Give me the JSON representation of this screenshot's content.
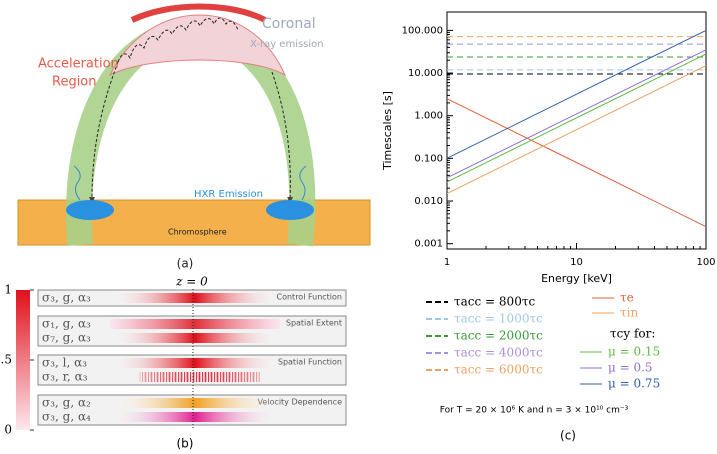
{
  "panel_a": {
    "coronal": "Coronal",
    "xray": "X-ray emission",
    "acceleration": "Acceleration",
    "region": "Region",
    "hxr": "HXR Emission",
    "chromosphere": "Chromosphere",
    "caption": "(a)"
  },
  "panel_b": {
    "colorbar_ticks": [
      0,
      0.5,
      1
    ],
    "z_label": "z = 0",
    "groups": [
      {
        "label": "Control Function",
        "rows": [
          "σ₃, g, α₃"
        ]
      },
      {
        "label": "Spatial Extent",
        "rows": [
          "σ₁, g, α₃",
          "σ₇, g, α₃"
        ]
      },
      {
        "label": "Spatial Function",
        "rows": [
          "σ₃, l, α₃",
          "σ₃, r, α₃"
        ]
      },
      {
        "label": "Velocity Dependence",
        "rows": [
          "σ₃, g, α₂",
          "σ₃, g, α₄"
        ]
      }
    ],
    "caption": "(b)"
  },
  "chart_data": {
    "type": "line",
    "xlabel": "Energy [keV]",
    "ylabel": "Timescales [s]",
    "log_x": true,
    "log_y": true,
    "x": [
      1,
      10,
      100
    ],
    "xlim": [
      1,
      100
    ],
    "ylim": [
      0.00075,
      270
    ],
    "xticks": [
      1,
      10,
      100
    ],
    "yticks": [
      {
        "value": 0.001,
        "label": "0.001"
      },
      {
        "value": 0.01,
        "label": "0.010"
      },
      {
        "value": 0.1,
        "label": "0.100"
      },
      {
        "value": 1,
        "label": "1.000"
      },
      {
        "value": 10,
        "label": "10.000"
      },
      {
        "value": 100,
        "label": "100.000"
      }
    ],
    "series": [
      {
        "name": "τacc = 800τc",
        "color": "#000000",
        "dashed": true,
        "values": [
          9.5,
          9.5,
          9.5
        ]
      },
      {
        "name": "τacc = 1000τc",
        "color": "#9fc8e8",
        "dashed": true,
        "values": [
          11.9,
          11.9,
          11.9
        ]
      },
      {
        "name": "τacc = 2000τc",
        "color": "#3a9a3a",
        "dashed": true,
        "values": [
          23.8,
          23.8,
          23.8
        ]
      },
      {
        "name": "τacc = 4000τc",
        "color": "#a890e0",
        "dashed": true,
        "values": [
          47.6,
          47.6,
          47.6
        ]
      },
      {
        "name": "τacc = 6000τc",
        "color": "#f0a060",
        "dashed": true,
        "values": [
          71.4,
          71.4,
          71.4
        ]
      },
      {
        "name": "τe",
        "color": "#e0603a",
        "dashed": false,
        "values": [
          2.5,
          0.08,
          0.0025
        ]
      },
      {
        "name": "τin",
        "color": "#f0a060",
        "dashed": false,
        "values": [
          0.015,
          0.47,
          15
        ]
      },
      {
        "name": "μ = 0.15",
        "color": "#5cc040",
        "dashed": false,
        "values": [
          0.028,
          0.89,
          28
        ]
      },
      {
        "name": "μ = 0.5",
        "color": "#9070d0",
        "dashed": false,
        "values": [
          0.035,
          1.1,
          35
        ]
      },
      {
        "name": "μ = 0.75",
        "color": "#3060b0",
        "dashed": false,
        "values": [
          0.1,
          3.2,
          100
        ]
      }
    ],
    "legend_heading": "τcy for:",
    "note": "For T = 20 × 10⁶ K and n = 3 × 10¹⁰ cm⁻³",
    "caption": "(c)"
  }
}
